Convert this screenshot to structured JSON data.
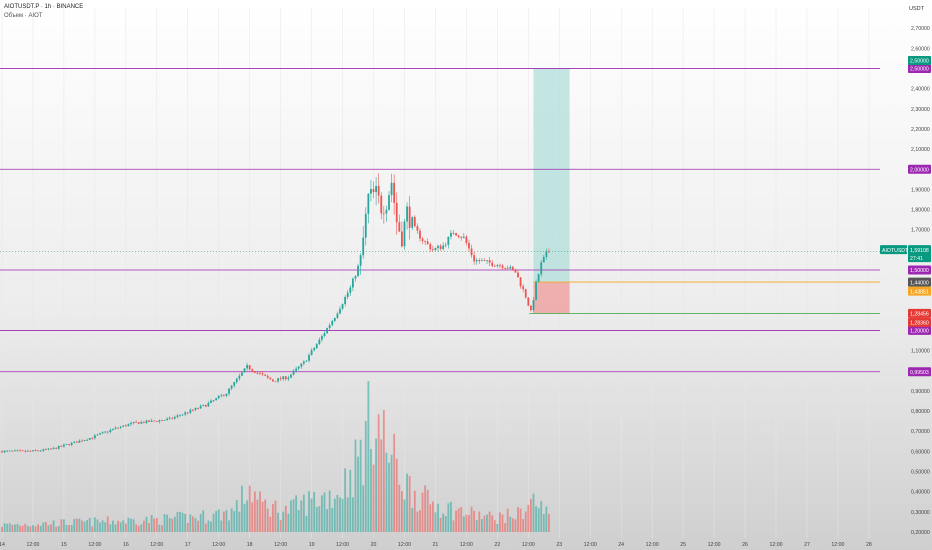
{
  "header": {
    "symbol": "AIOTUSDT.P · 1h · BINANCE",
    "indicator": "Объем · AIOT"
  },
  "axis": {
    "currency": "USDT"
  },
  "chart_data": {
    "type": "candlestick",
    "y_range": [
      0.17,
      2.8
    ],
    "y_ticks": [
      "2,70000",
      "2,60000",
      "2,40000",
      "2,30000",
      "2,20000",
      "2,10000",
      "1,90000",
      "1,80000",
      "1,70000",
      "1,10000",
      "0,90000",
      "0,80000",
      "0,70000",
      "0,60000",
      "0,50000",
      "0,40000",
      "0,30000",
      "0,20000"
    ],
    "x_ticks": [
      {
        "t": 0,
        "label": "14"
      },
      {
        "t": 12,
        "label": "12:00"
      },
      {
        "t": 24,
        "label": "15"
      },
      {
        "t": 36,
        "label": "12:00"
      },
      {
        "t": 48,
        "label": "16"
      },
      {
        "t": 60,
        "label": "12:00"
      },
      {
        "t": 72,
        "label": "17"
      },
      {
        "t": 84,
        "label": "12:00"
      },
      {
        "t": 96,
        "label": "18"
      },
      {
        "t": 108,
        "label": "12:00"
      },
      {
        "t": 120,
        "label": "19"
      },
      {
        "t": 132,
        "label": "12:00"
      },
      {
        "t": 144,
        "label": "20"
      },
      {
        "t": 156,
        "label": "12:00"
      },
      {
        "t": 168,
        "label": "21"
      },
      {
        "t": 180,
        "label": "12:00"
      },
      {
        "t": 192,
        "label": "22"
      },
      {
        "t": 204,
        "label": "12:00"
      },
      {
        "t": 216,
        "label": "23"
      },
      {
        "t": 228,
        "label": "12:00"
      },
      {
        "t": 240,
        "label": "24"
      },
      {
        "t": 252,
        "label": "12:00"
      },
      {
        "t": 264,
        "label": "25"
      },
      {
        "t": 276,
        "label": "12:00"
      },
      {
        "t": 288,
        "label": "26"
      },
      {
        "t": 300,
        "label": "12:00"
      },
      {
        "t": 312,
        "label": "27"
      },
      {
        "t": 324,
        "label": "12:00"
      },
      {
        "t": 336,
        "label": "28"
      }
    ],
    "price_anchors": [
      [
        0,
        0.6
      ],
      [
        12,
        0.6
      ],
      [
        20,
        0.61
      ],
      [
        28,
        0.64
      ],
      [
        36,
        0.67
      ],
      [
        44,
        0.71
      ],
      [
        52,
        0.74
      ],
      [
        60,
        0.75
      ],
      [
        66,
        0.76
      ],
      [
        72,
        0.79
      ],
      [
        80,
        0.83
      ],
      [
        88,
        0.89
      ],
      [
        96,
        1.02
      ],
      [
        100,
        0.99
      ],
      [
        106,
        0.95
      ],
      [
        112,
        0.97
      ],
      [
        118,
        1.04
      ],
      [
        124,
        1.15
      ],
      [
        130,
        1.27
      ],
      [
        136,
        1.41
      ],
      [
        140,
        1.55
      ],
      [
        143,
        1.86
      ],
      [
        146,
        1.88
      ],
      [
        148,
        1.81
      ],
      [
        150,
        1.84
      ],
      [
        152,
        1.94
      ],
      [
        154,
        1.74
      ],
      [
        156,
        1.66
      ],
      [
        158,
        1.79
      ],
      [
        160,
        1.72
      ],
      [
        164,
        1.65
      ],
      [
        168,
        1.6
      ],
      [
        172,
        1.62
      ],
      [
        176,
        1.69
      ],
      [
        180,
        1.66
      ],
      [
        184,
        1.55
      ],
      [
        188,
        1.54
      ],
      [
        192,
        1.53
      ],
      [
        196,
        1.52
      ],
      [
        200,
        1.49
      ],
      [
        204,
        1.37
      ],
      [
        206,
        1.29
      ],
      [
        208,
        1.43
      ],
      [
        210,
        1.53
      ],
      [
        212,
        1.58
      ]
    ],
    "volume_anchors": [
      [
        0,
        0.04
      ],
      [
        20,
        0.05
      ],
      [
        40,
        0.06
      ],
      [
        60,
        0.07
      ],
      [
        80,
        0.09
      ],
      [
        90,
        0.12
      ],
      [
        96,
        0.25
      ],
      [
        100,
        0.16
      ],
      [
        110,
        0.12
      ],
      [
        120,
        0.18
      ],
      [
        130,
        0.22
      ],
      [
        136,
        0.35
      ],
      [
        140,
        0.48
      ],
      [
        144,
        0.7
      ],
      [
        146,
        0.6
      ],
      [
        150,
        0.45
      ],
      [
        156,
        0.28
      ],
      [
        164,
        0.18
      ],
      [
        176,
        0.12
      ],
      [
        190,
        0.08
      ],
      [
        200,
        0.1
      ],
      [
        206,
        0.18
      ],
      [
        210,
        0.12
      ],
      [
        212,
        0.1
      ]
    ],
    "levels": [
      {
        "price": 2.5,
        "label": "2,50000",
        "color": "#9c27b0"
      },
      {
        "price": 2.0,
        "label": "2,00000",
        "color": "#9c27b0"
      },
      {
        "price": 1.5,
        "label": "1,50000",
        "color": "#9c27b0"
      },
      {
        "price": 1.2,
        "label": "1,20000",
        "color": "#9c27b0"
      },
      {
        "price": 0.99503,
        "label": "0,99503",
        "color": "#9c27b0"
      }
    ],
    "position": {
      "t_start": 206,
      "t_end": 220,
      "target": 2.5,
      "target_label": "2,50000",
      "entry": 1.44,
      "entry_label": "1,44000",
      "entry_alt_label": "1,43851",
      "stop": 1.28456,
      "stop_label": "1,28456",
      "stop_alt_label": "1,28360",
      "entry_color": "#f5a623",
      "stop_color": "#4caf50",
      "profit_fill": "#b2dfdb",
      "loss_fill": "#ef9a9a"
    },
    "current": {
      "price": 1.59108,
      "symbol_tag": "AIOTUSDT.P",
      "price_label": "1,59108",
      "countdown": "27:41",
      "color": "#089981"
    },
    "colors": {
      "up": "#26a69a",
      "down": "#ef5350",
      "grid": "#e6e6e6"
    }
  }
}
